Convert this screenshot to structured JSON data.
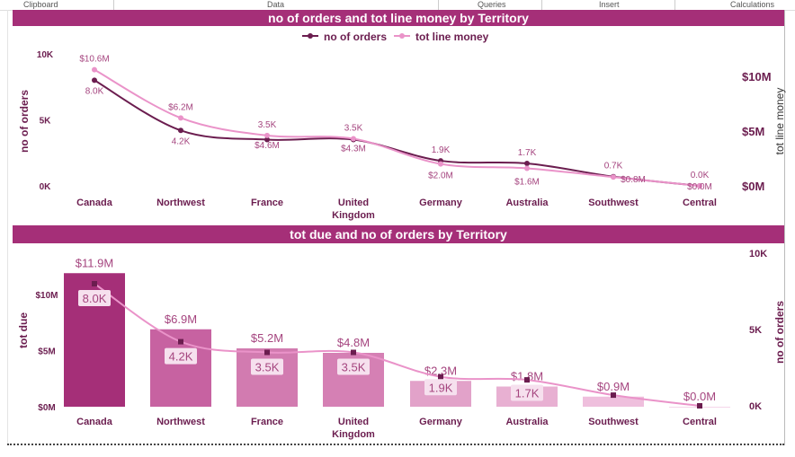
{
  "ribbon": {
    "groups": [
      "Clipboard",
      "Data",
      "Queries",
      "Insert",
      "Calculations"
    ]
  },
  "colors": {
    "title_bg": "#a52f78",
    "orders_line": "#6b1d4f",
    "money_line": "#ea93c9",
    "axis_text": "#6b1d4f",
    "label_text": "#a5457f"
  },
  "chart_data": [
    {
      "type": "line",
      "title": "no of orders and tot line money by Territory",
      "legend_position": "top-center",
      "categories": [
        "Canada",
        "Northwest",
        "France",
        "United Kingdom",
        "Germany",
        "Australia",
        "Southwest",
        "Central"
      ],
      "category_labels": [
        [
          "Canada"
        ],
        [
          "Northwest"
        ],
        [
          "France"
        ],
        [
          "United",
          "Kingdom"
        ],
        [
          "Germany"
        ],
        [
          "Australia"
        ],
        [
          "Southwest"
        ],
        [
          "Central"
        ]
      ],
      "ylabel_left": "no of orders",
      "ylabel_right": "tot line money",
      "yticks_left": [
        "0K",
        "5K",
        "10K"
      ],
      "yticks_right": [
        "$0M",
        "$5M",
        "$10M"
      ],
      "ylim_left": [
        0,
        10000
      ],
      "ylim_right": [
        0,
        12000000
      ],
      "grid": false,
      "series": [
        {
          "name": "no of orders",
          "axis": "left",
          "values": [
            8000,
            4200,
            3500,
            3500,
            1900,
            1700,
            700,
            0
          ],
          "labels": [
            "8.0K",
            "4.2K",
            "3.5K",
            "3.5K",
            "1.9K",
            "1.7K",
            "0.7K",
            "0.0K"
          ]
        },
        {
          "name": "tot line money",
          "axis": "right",
          "values": [
            10600000,
            6200000,
            4600000,
            4300000,
            2000000,
            1600000,
            800000,
            0
          ],
          "labels": [
            "$10.6M",
            "$6.2M",
            "$4.6M",
            "$4.3M",
            "$2.0M",
            "$1.6M",
            "$0.8M",
            "$0.0M"
          ]
        }
      ]
    },
    {
      "type": "bar+line",
      "title": "tot due and no of orders by Territory",
      "categories": [
        "Canada",
        "Northwest",
        "France",
        "United Kingdom",
        "Germany",
        "Australia",
        "Southwest",
        "Central"
      ],
      "category_labels": [
        [
          "Canada"
        ],
        [
          "Northwest"
        ],
        [
          "France"
        ],
        [
          "United",
          "Kingdom"
        ],
        [
          "Germany"
        ],
        [
          "Australia"
        ],
        [
          "Southwest"
        ],
        [
          "Central"
        ]
      ],
      "ylabel_left": "tot due",
      "ylabel_right": "no of orders",
      "yticks_left": [
        "$0M",
        "$5M",
        "$10M"
      ],
      "yticks_right": [
        "0K",
        "5K",
        "10K"
      ],
      "ylim_left": [
        0,
        10000000
      ],
      "ylim_right": [
        0,
        10000
      ],
      "grid": false,
      "bars": {
        "name": "tot due",
        "values": [
          11900000,
          6900000,
          5200000,
          4800000,
          2300000,
          1800000,
          900000,
          0
        ],
        "labels": [
          "$11.9M",
          "$6.9M",
          "$5.2M",
          "$4.8M",
          "$2.3M",
          "$1.8M",
          "$0.9M",
          "$0.0M"
        ],
        "colors": [
          "#a52f78",
          "#c762a1",
          "#d27bb0",
          "#d580b4",
          "#e2a2c9",
          "#e8b0d2",
          "#efbfdd",
          "#f5d6ea"
        ]
      },
      "line": {
        "name": "no of orders",
        "values": [
          8000,
          4200,
          3500,
          3500,
          1900,
          1700,
          700,
          0
        ],
        "labels": [
          "8.0K",
          "4.2K",
          "3.5K",
          "3.5K",
          "1.9K",
          "1.7K",
          "",
          ""
        ]
      }
    }
  ]
}
